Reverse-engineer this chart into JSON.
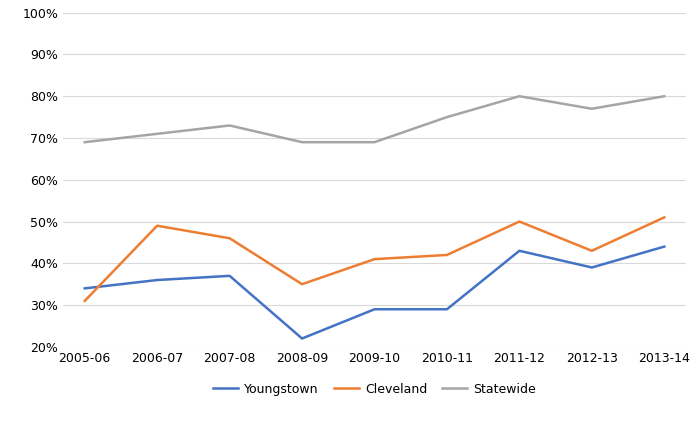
{
  "years": [
    "2005-06",
    "2006-07",
    "2007-08",
    "2008-09",
    "2009-10",
    "2010-11",
    "2011-12",
    "2012-13",
    "2013-14"
  ],
  "youngstown": [
    0.34,
    0.36,
    0.37,
    0.22,
    0.29,
    0.29,
    0.43,
    0.39,
    0.44
  ],
  "cleveland": [
    0.31,
    0.49,
    0.46,
    0.35,
    0.41,
    0.42,
    0.5,
    0.43,
    0.51
  ],
  "statewide": [
    0.69,
    0.71,
    0.73,
    0.69,
    0.69,
    0.75,
    0.8,
    0.77,
    0.8
  ],
  "youngstown_color": "#4472C4",
  "cleveland_color": "#ED7D31",
  "statewide_color": "#A5A5A5",
  "ylim": [
    0.2,
    1.0
  ],
  "yticks": [
    0.2,
    0.3,
    0.4,
    0.5,
    0.6,
    0.7,
    0.8,
    0.9,
    1.0
  ],
  "legend_labels": [
    "Youngstown",
    "Cleveland",
    "Statewide"
  ],
  "background_color": "#FFFFFF",
  "grid_color": "#D9D9D9",
  "line_width": 1.8,
  "marker": null,
  "marker_size": 0,
  "tick_fontsize": 9,
  "legend_fontsize": 9
}
